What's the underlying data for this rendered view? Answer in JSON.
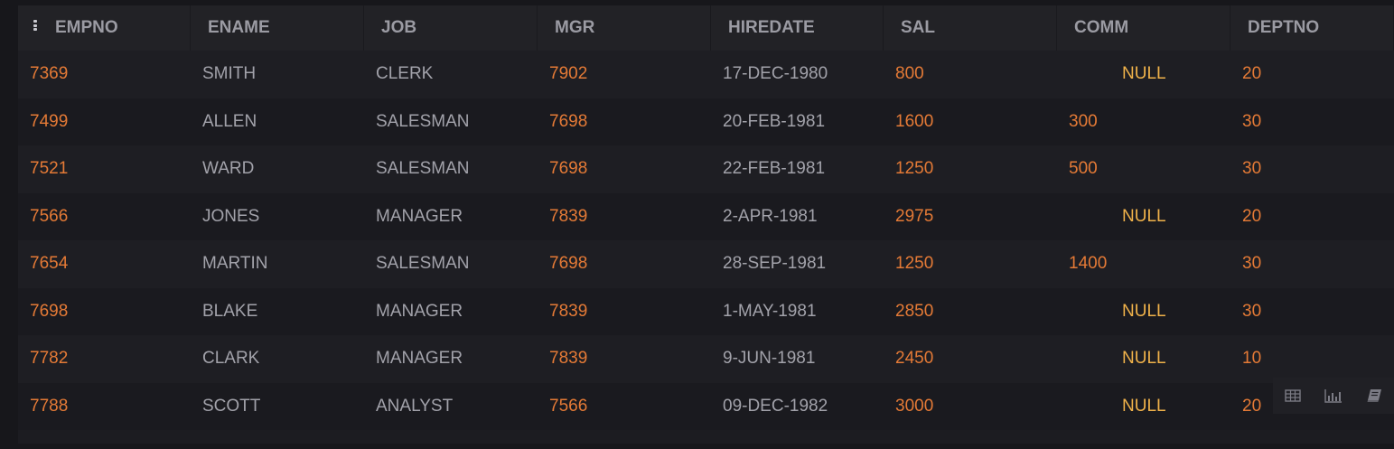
{
  "columns": [
    "EMPNO",
    "ENAME",
    "JOB",
    "MGR",
    "HIREDATE",
    "SAL",
    "COMM",
    "DEPTNO"
  ],
  "rows": [
    [
      "7369",
      "SMITH",
      "CLERK",
      "7902",
      "17-DEC-1980",
      "800",
      "NULL",
      "20"
    ],
    [
      "7499",
      "ALLEN",
      "SALESMAN",
      "7698",
      "20-FEB-1981",
      "1600",
      "300",
      "30"
    ],
    [
      "7521",
      "WARD",
      "SALESMAN",
      "7698",
      "22-FEB-1981",
      "1250",
      "500",
      "30"
    ],
    [
      "7566",
      "JONES",
      "MANAGER",
      "7839",
      "2-APR-1981",
      "2975",
      "NULL",
      "20"
    ],
    [
      "7654",
      "MARTIN",
      "SALESMAN",
      "7698",
      "28-SEP-1981",
      "1250",
      "1400",
      "30"
    ],
    [
      "7698",
      "BLAKE",
      "MANAGER",
      "7839",
      "1-MAY-1981",
      "2850",
      "NULL",
      "30"
    ],
    [
      "7782",
      "CLARK",
      "MANAGER",
      "7839",
      "9-JUN-1981",
      "2450",
      "NULL",
      "10"
    ],
    [
      "7788",
      "SCOTT",
      "ANALYST",
      "7566",
      "09-DEC-1982",
      "3000",
      "NULL",
      "20"
    ]
  ],
  "icons": {
    "column_menu": "kebab-icon",
    "table_view": "table-icon",
    "chart_view": "bar-chart-icon",
    "notebook_view": "book-icon"
  },
  "colors": {
    "number": "#e47a36",
    "text": "#a2a2aa",
    "null": "#f0b24a",
    "header_text": "#9b9ba3"
  }
}
